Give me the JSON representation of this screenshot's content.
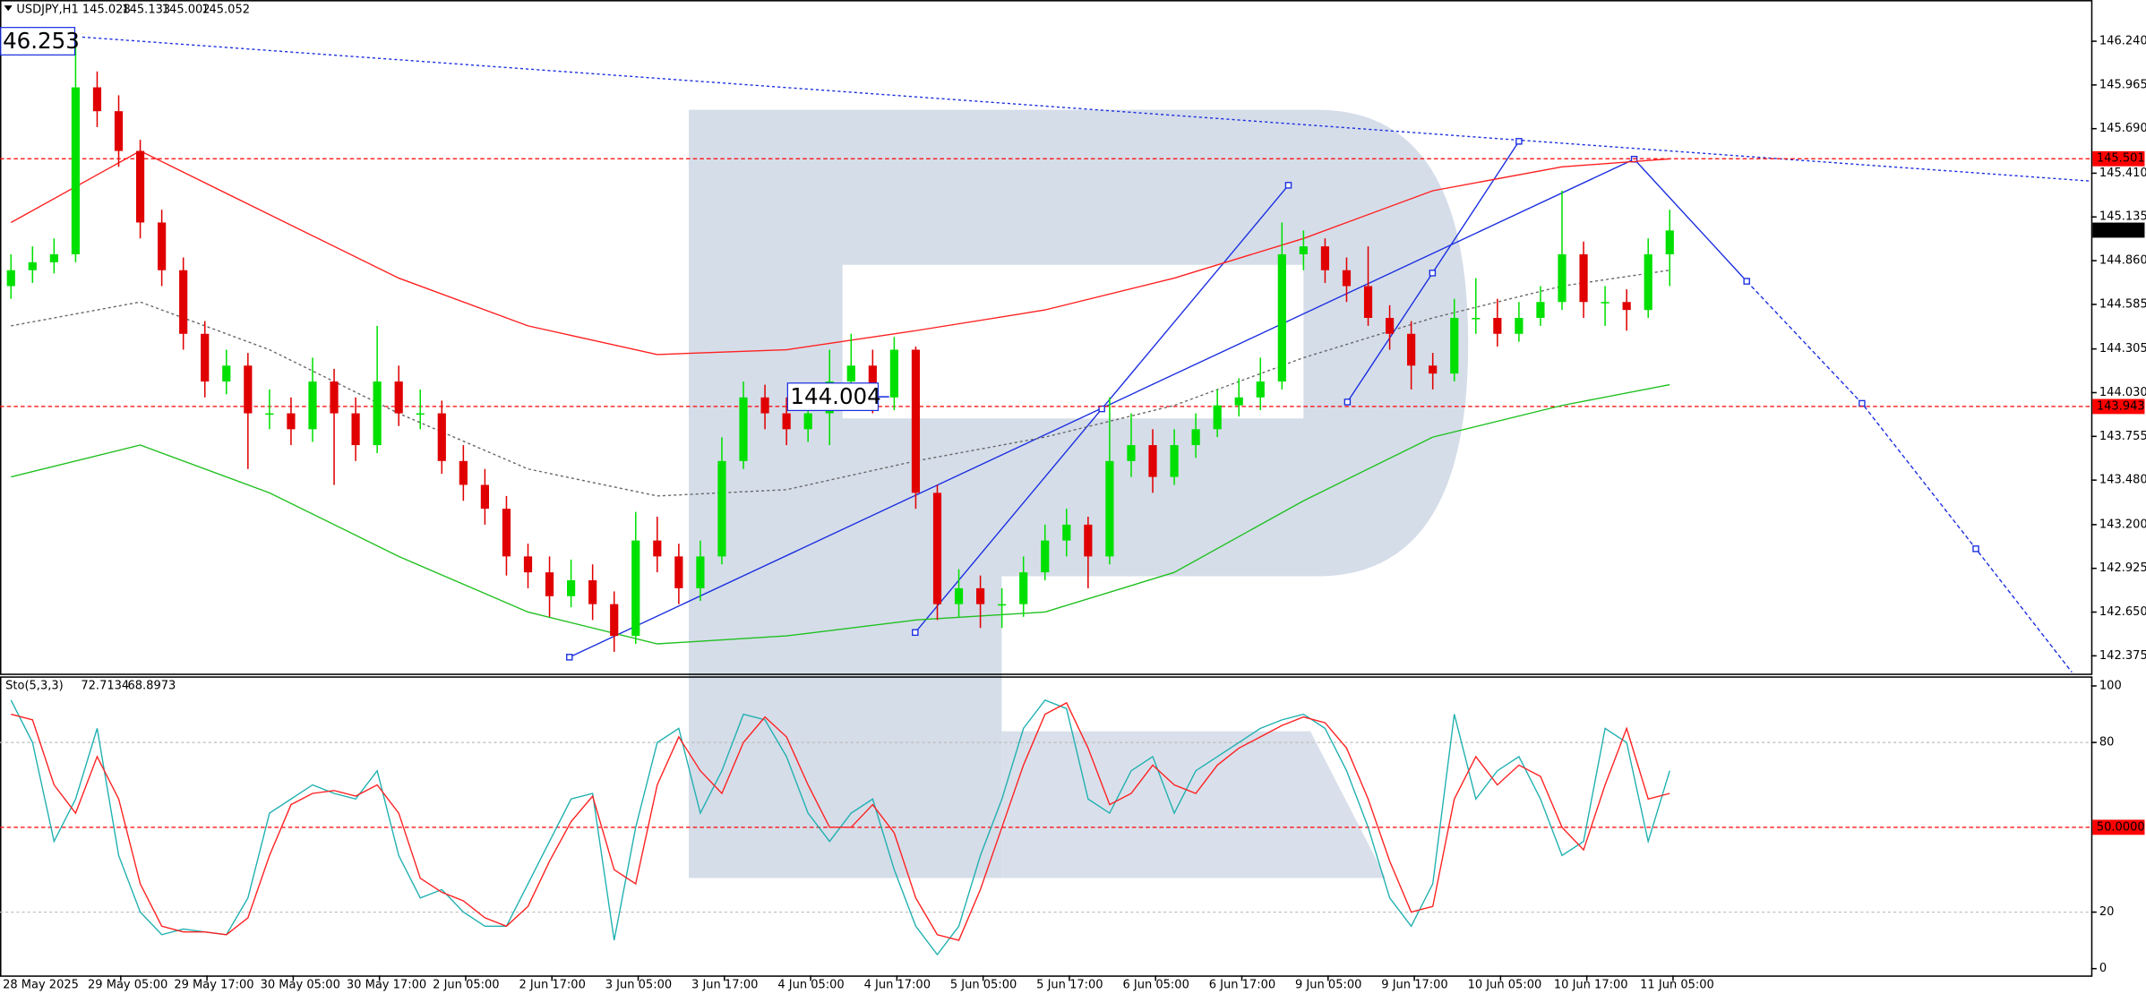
{
  "chart_data": {
    "type": "candlestick",
    "title": "USDJPY,H1",
    "quote_values": [
      145.028,
      145.133,
      145.002,
      145.052
    ],
    "x_labels": [
      "28 May 2025",
      "29 May 05:00",
      "29 May 17:00",
      "30 May 05:00",
      "30 May 17:00",
      "2 Jun 05:00",
      "2 Jun 17:00",
      "3 Jun 05:00",
      "3 Jun 17:00",
      "4 Jun 05:00",
      "4 Jun 17:00",
      "5 Jun 05:00",
      "5 Jun 17:00",
      "6 Jun 05:00",
      "6 Jun 17:00",
      "9 Jun 05:00",
      "9 Jun 17:00",
      "10 Jun 05:00",
      "10 Jun 17:00",
      "11 Jun 05:00"
    ],
    "open": [
      144.7,
      144.8,
      144.85,
      144.9,
      145.95,
      145.8,
      145.55,
      145.1,
      144.8,
      144.4,
      144.1,
      144.2,
      143.9,
      143.9,
      143.8,
      144.1,
      143.9,
      143.7,
      144.1,
      143.9,
      143.9,
      143.6,
      143.45,
      143.3,
      143.0,
      142.9,
      142.75,
      142.85,
      142.7,
      142.5,
      143.1,
      143.0,
      142.8,
      143.0,
      143.6,
      144.0,
      143.9,
      143.8,
      143.9,
      144.1,
      144.2,
      144.0,
      144.3,
      143.4,
      142.7,
      142.8,
      142.7,
      142.7,
      142.9,
      143.1,
      143.2,
      143.0,
      143.6,
      143.7,
      143.5,
      143.7,
      143.8,
      143.95,
      144.0,
      144.1,
      144.9,
      144.95,
      144.8,
      144.7,
      144.5,
      144.4,
      144.2,
      144.15,
      144.5,
      144.5,
      144.4,
      144.5,
      144.6,
      144.9,
      144.6,
      144.6,
      144.55,
      144.9
    ],
    "high": [
      144.9,
      144.95,
      145.0,
      146.25,
      146.05,
      145.9,
      145.62,
      145.18,
      144.88,
      144.48,
      144.3,
      144.28,
      144.05,
      144.0,
      144.25,
      144.18,
      144.0,
      144.45,
      144.2,
      144.05,
      143.98,
      143.7,
      143.55,
      143.38,
      143.08,
      143.0,
      142.98,
      142.95,
      142.78,
      143.28,
      143.25,
      143.08,
      143.1,
      143.75,
      144.1,
      144.08,
      144.0,
      144.05,
      144.3,
      144.4,
      144.3,
      144.38,
      144.32,
      143.45,
      142.92,
      142.88,
      142.8,
      143.0,
      143.2,
      143.3,
      143.25,
      144.0,
      143.9,
      143.8,
      143.8,
      143.9,
      144.05,
      144.12,
      144.25,
      145.1,
      145.05,
      145.0,
      144.88,
      144.95,
      144.58,
      144.48,
      144.28,
      144.62,
      144.75,
      144.62,
      144.6,
      144.7,
      145.3,
      144.98,
      144.7,
      144.68,
      145.0,
      145.18
    ],
    "low": [
      144.62,
      144.72,
      144.78,
      144.85,
      145.7,
      145.45,
      145.0,
      144.7,
      144.3,
      144.0,
      144.02,
      143.55,
      143.8,
      143.7,
      143.72,
      143.45,
      143.6,
      143.65,
      143.82,
      143.8,
      143.52,
      143.35,
      143.2,
      142.88,
      142.8,
      142.62,
      142.68,
      142.6,
      142.4,
      142.45,
      142.9,
      142.7,
      142.72,
      142.95,
      143.55,
      143.8,
      143.7,
      143.72,
      143.7,
      144.0,
      143.9,
      143.92,
      143.3,
      142.6,
      142.62,
      142.55,
      142.55,
      142.62,
      142.85,
      143.0,
      142.8,
      142.95,
      143.5,
      143.4,
      143.45,
      143.62,
      143.75,
      143.88,
      143.92,
      144.05,
      144.8,
      144.72,
      144.6,
      144.45,
      144.3,
      144.05,
      144.05,
      144.1,
      144.4,
      144.32,
      144.35,
      144.45,
      144.55,
      144.5,
      144.45,
      144.42,
      144.5,
      144.7
    ],
    "close": [
      144.8,
      144.85,
      144.9,
      145.95,
      145.8,
      145.55,
      145.1,
      144.8,
      144.4,
      144.1,
      144.2,
      143.9,
      143.9,
      143.8,
      144.1,
      143.9,
      143.7,
      144.1,
      143.9,
      143.9,
      143.6,
      143.45,
      143.3,
      143.0,
      142.9,
      142.75,
      142.85,
      142.7,
      142.5,
      143.1,
      143.0,
      142.8,
      143.0,
      143.6,
      144.0,
      143.9,
      143.8,
      143.9,
      144.1,
      144.2,
      144.0,
      144.3,
      143.4,
      142.7,
      142.8,
      142.7,
      142.7,
      142.9,
      143.1,
      143.2,
      143.0,
      143.6,
      143.7,
      143.5,
      143.7,
      143.8,
      143.95,
      144.0,
      144.1,
      144.9,
      144.95,
      144.8,
      144.7,
      144.5,
      144.4,
      144.2,
      144.15,
      144.5,
      144.5,
      144.4,
      144.5,
      144.6,
      144.9,
      144.6,
      144.6,
      144.55,
      144.9,
      145.05
    ],
    "up_color": "#00e000",
    "down_color": "#e00000",
    "ylim": [
      142.263,
      146.499
    ],
    "yticks": [
      {
        "value": 146.24,
        "label": "146.240"
      },
      145.965,
      {
        "value": 145.69,
        "label": "145.690"
      },
      {
        "value": 145.41,
        "label": "145.410"
      },
      145.135,
      {
        "value": 144.86,
        "label": "144.860"
      },
      144.585,
      144.305,
      {
        "value": 144.03,
        "label": "144.030"
      },
      143.755,
      {
        "value": 143.48,
        "label": "143.480"
      },
      {
        "value": 143.2,
        "label": "143.200"
      },
      142.925,
      {
        "value": 142.65,
        "label": "142.650"
      },
      142.375
    ],
    "moving_averages": {
      "x": [
        0,
        6,
        12,
        18,
        24,
        30,
        36,
        42,
        48,
        54,
        60,
        66,
        72,
        77
      ],
      "series": [
        {
          "color": "#ff2020",
          "dash": "none",
          "values": [
            145.1,
            145.55,
            145.15,
            144.75,
            144.45,
            144.27,
            144.3,
            144.42,
            144.55,
            144.75,
            145.0,
            145.3,
            145.45,
            145.5
          ]
        },
        {
          "color": "#666666",
          "dash": "2 2",
          "values": [
            144.45,
            144.6,
            144.3,
            143.9,
            143.55,
            143.38,
            143.42,
            143.6,
            143.75,
            143.95,
            144.25,
            144.5,
            144.7,
            144.8
          ]
        },
        {
          "color": "#20c020",
          "dash": "none",
          "values": [
            143.5,
            143.7,
            143.4,
            143.0,
            142.65,
            142.45,
            142.5,
            142.6,
            142.65,
            142.9,
            143.35,
            143.75,
            143.95,
            144.08
          ]
        }
      ]
    },
    "levels": [
      {
        "value": 145.501,
        "color": "#ff0000"
      },
      {
        "value": 143.943,
        "color": "#ff0000"
      }
    ],
    "last_price": 145.052,
    "annotations": [
      {
        "value": 146.253,
        "label": "46.253"
      },
      {
        "value": 144.004,
        "label": "144.004"
      }
    ],
    "stochastic": {
      "name": "Sto(5,3,3)",
      "readings": [
        72.7134,
        68.8973
      ],
      "ylim": [
        -2.4,
        102.9
      ],
      "yticks": [
        0,
        20,
        80,
        100
      ],
      "level": {
        "value": 50,
        "label": "50.0000"
      },
      "main": {
        "color": "#20b0b0",
        "values": [
          95,
          80,
          45,
          60,
          85,
          40,
          20,
          12,
          14,
          13,
          12,
          25,
          55,
          60,
          65,
          62,
          60,
          70,
          40,
          25,
          28,
          20,
          15,
          15,
          30,
          45,
          60,
          62,
          10,
          50,
          80,
          85,
          55,
          70,
          90,
          88,
          75,
          55,
          45,
          55,
          60,
          35,
          15,
          5,
          15,
          40,
          60,
          85,
          95,
          92,
          60,
          55,
          70,
          75,
          55,
          70,
          75,
          80,
          85,
          88,
          90,
          85,
          70,
          50,
          25,
          15,
          30,
          90,
          60,
          70,
          75,
          60,
          40,
          45,
          85,
          80,
          45,
          70
        ]
      },
      "signal": {
        "color": "#ff2020",
        "values": [
          90,
          88,
          65,
          55,
          75,
          60,
          30,
          15,
          13,
          13,
          12,
          18,
          40,
          58,
          62,
          63,
          61,
          65,
          55,
          32,
          27,
          24,
          18,
          15,
          22,
          38,
          52,
          61,
          35,
          30,
          65,
          82,
          70,
          62,
          80,
          89,
          82,
          65,
          50,
          50,
          58,
          48,
          25,
          12,
          10,
          28,
          50,
          72,
          90,
          94,
          78,
          58,
          62,
          72,
          65,
          62,
          72,
          78,
          82,
          86,
          89,
          87,
          78,
          60,
          38,
          20,
          22,
          60,
          75,
          65,
          72,
          68,
          50,
          42,
          65,
          85,
          60,
          62
        ]
      }
    }
  }
}
